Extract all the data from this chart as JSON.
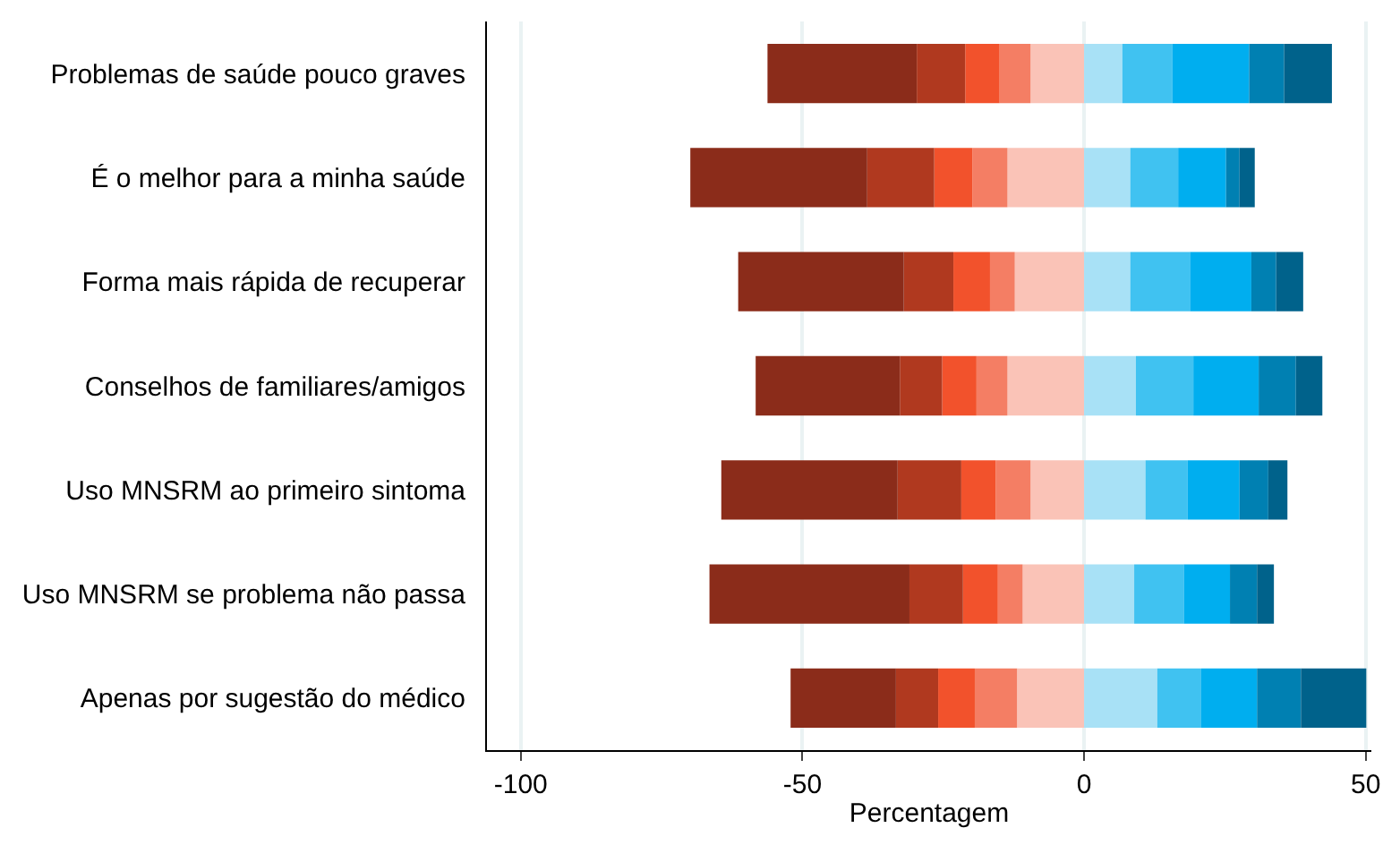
{
  "chart_data": {
    "type": "bar",
    "orientation": "horizontal",
    "stacked": true,
    "xlabel": "Percentagem",
    "categories": [
      "Problemas de saúde pouco graves",
      "É o melhor para a minha saúde",
      "Forma mais rápida de recuperar",
      "Conselhos de familiares/amigos",
      "Uso MNSRM ao primeiro sintoma",
      "Uso MNSRM se problema não passa",
      "Apenas por sugestão do médico"
    ],
    "series": [
      {
        "color": "#fac3b7",
        "values": [
          -9.5,
          -13.6,
          -12.3,
          -13.6,
          -9.5,
          -10.9,
          -11.9
        ]
      },
      {
        "color": "#f47e64",
        "values": [
          -5.5,
          -6.2,
          -4.4,
          -5.5,
          -6.2,
          -4.4,
          -7.5
        ]
      },
      {
        "color": "#f2522c",
        "values": [
          -6.1,
          -6.8,
          -6.5,
          -6.1,
          -6.1,
          -6.2,
          -6.5
        ]
      },
      {
        "color": "#b0391f",
        "values": [
          -8.6,
          -11.9,
          -8.8,
          -7.5,
          -11.3,
          -9.5,
          -7.5
        ]
      },
      {
        "color": "#8b2c1a",
        "values": [
          -26.5,
          -31.4,
          -29.4,
          -25.6,
          -31.3,
          -35.5,
          -18.7
        ]
      },
      {
        "color": "#a8e1f6",
        "values": [
          6.8,
          8.2,
          8.2,
          9.2,
          10.9,
          8.9,
          13.0
        ]
      },
      {
        "color": "#40c2f1",
        "values": [
          8.9,
          8.5,
          10.6,
          10.2,
          7.5,
          8.8,
          7.8
        ]
      },
      {
        "color": "#00aeef",
        "values": [
          13.6,
          8.5,
          10.9,
          11.6,
          9.2,
          8.2,
          9.9
        ]
      },
      {
        "color": "#0080b2",
        "values": [
          6.2,
          2.4,
          4.4,
          6.6,
          5.1,
          4.8,
          7.8
        ]
      },
      {
        "color": "#00628b",
        "values": [
          8.5,
          2.7,
          4.8,
          4.7,
          3.4,
          3.0,
          11.6
        ]
      }
    ],
    "xlim": [
      -106,
      51
    ],
    "xticks": [
      -100,
      -50,
      0,
      50
    ],
    "grid": "x"
  }
}
